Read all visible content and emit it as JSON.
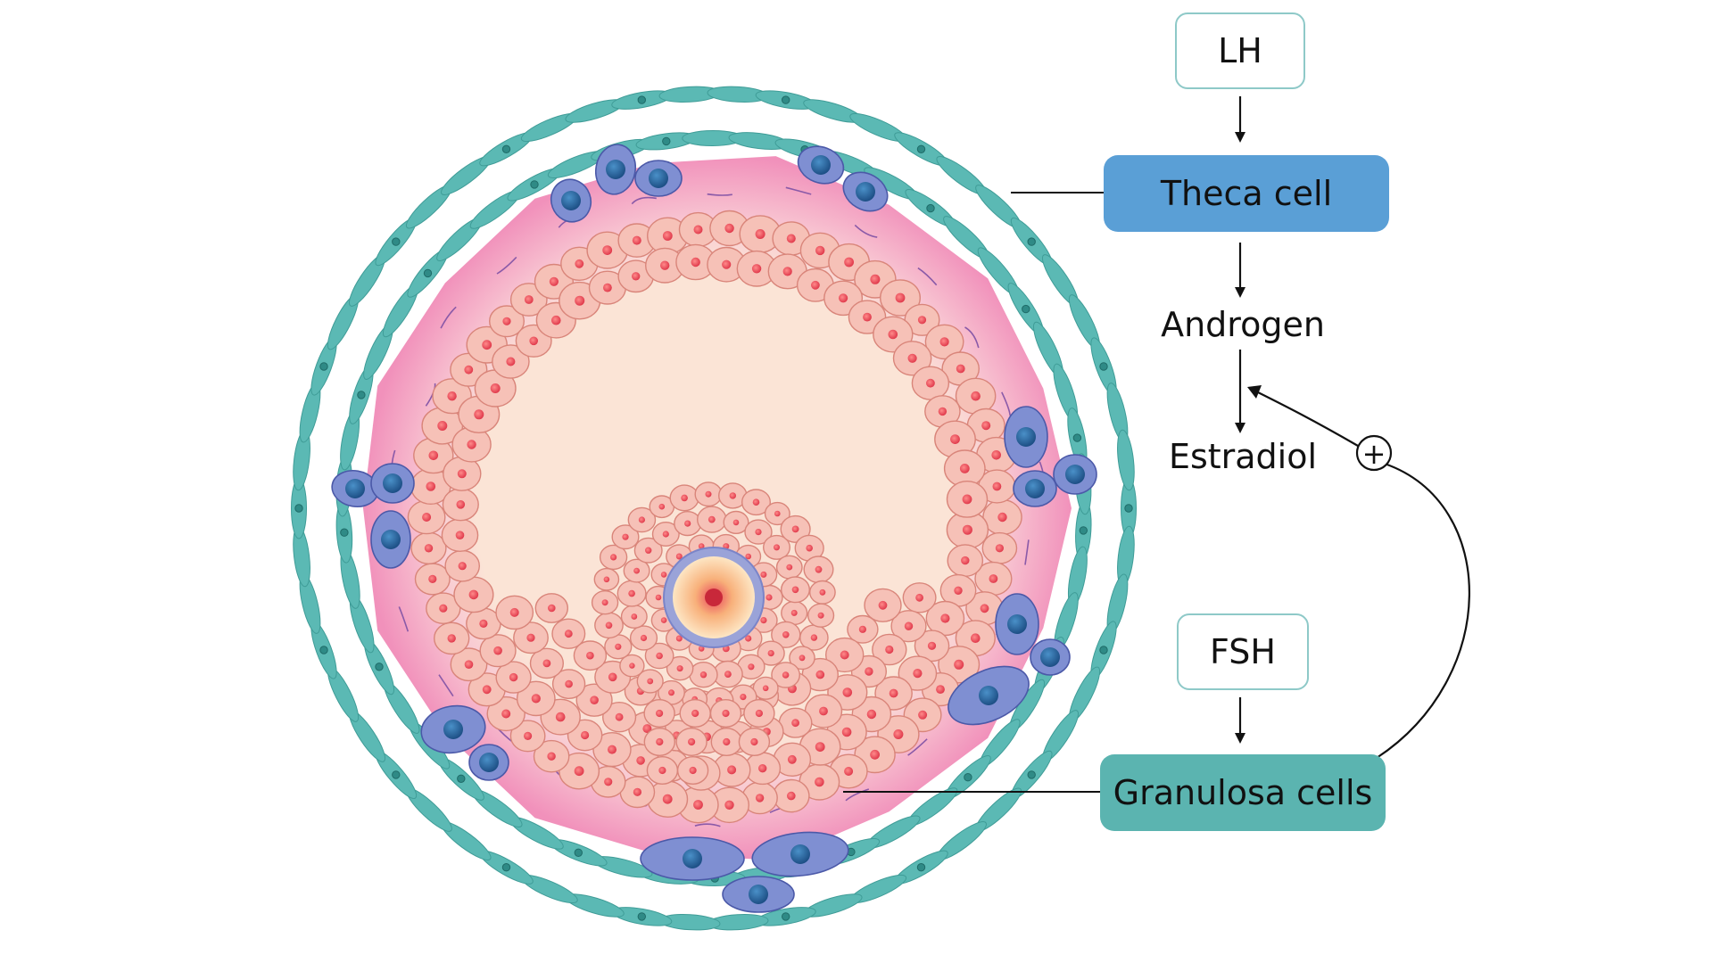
{
  "diagram": {
    "lh_label": "LH",
    "theca_label": "Theca cell",
    "androgen_label": "Androgen",
    "estradiol_label": "Estradiol",
    "fsh_label": "FSH",
    "granulosa_label": "Granulosa cells",
    "positive_feedback_symbol": "+"
  },
  "colors": {
    "theca_box": "#5a9fd6",
    "granulosa_box": "#5bb4b0",
    "outline_box_border": "#8ec9c8",
    "outer_layer": "#5bb9b4",
    "theca_layer": "#f4a9c8",
    "granulosa_cell": "#f6c1b7",
    "granulosa_nucleus": "#e84a5a",
    "theca_cell": "#7f8fd2",
    "theca_nucleus": "#2e6aa8"
  }
}
